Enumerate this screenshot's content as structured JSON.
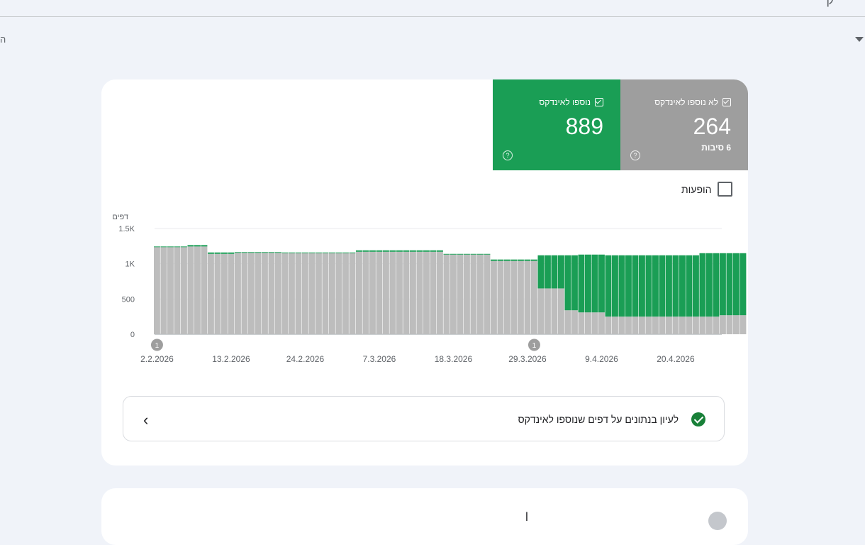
{
  "top": {
    "glyph": "ק",
    "left_fragment": "ה"
  },
  "tiles": {
    "indexed": {
      "label": "נוספו לאינדקס",
      "value": "889",
      "color": "#1a9e55"
    },
    "not_indexed": {
      "label": "לא נוספו לאינדקס",
      "value": "264",
      "sub": "6 סיבות",
      "color": "#9e9e9e"
    },
    "help_glyph": "?"
  },
  "impressions_label": "הופעות",
  "chart_data": {
    "type": "bar",
    "stacked": true,
    "ylabel": "דפים",
    "ylim": [
      0,
      1500
    ],
    "yticks": [
      "0",
      "500",
      "1K",
      "1.5K"
    ],
    "ytick_values": [
      0,
      500,
      1000,
      1500
    ],
    "x_start": "2026-02-02",
    "xtick_labels": [
      "2.2.2026",
      "13.2.2026",
      "24.2.2026",
      "7.3.2026",
      "18.3.2026",
      "29.3.2026",
      "9.4.2026",
      "20.4.2026"
    ],
    "annotations": [
      {
        "date": "2026-02-02",
        "label": "1"
      },
      {
        "date": "2026-03-30",
        "label": "1"
      }
    ],
    "series": [
      {
        "name": "לא נוספו לאינדקס",
        "color": "#bdbdbd",
        "values": [
          1235,
          1235,
          1235,
          1235,
          1235,
          1245,
          1245,
          1245,
          1140,
          1140,
          1140,
          1140,
          1155,
          1155,
          1155,
          1155,
          1155,
          1155,
          1155,
          1150,
          1150,
          1150,
          1150,
          1150,
          1150,
          1150,
          1150,
          1150,
          1150,
          1150,
          1170,
          1170,
          1170,
          1170,
          1170,
          1170,
          1170,
          1170,
          1170,
          1170,
          1170,
          1170,
          1170,
          1130,
          1130,
          1130,
          1130,
          1130,
          1130,
          1130,
          1040,
          1040,
          1040,
          1040,
          1040,
          1040,
          1040,
          650,
          650,
          650,
          650,
          340,
          340,
          310,
          310,
          310,
          310,
          250,
          250,
          250,
          250,
          250,
          250,
          250,
          250,
          250,
          250,
          250,
          250,
          250,
          250,
          250,
          250,
          250,
          270,
          270,
          270,
          270
        ]
      },
      {
        "name": "נוספו לאינדקס",
        "color": "#1a9e55",
        "values": [
          10,
          10,
          10,
          10,
          10,
          20,
          20,
          20,
          20,
          20,
          20,
          20,
          10,
          10,
          10,
          10,
          10,
          10,
          10,
          10,
          10,
          10,
          10,
          10,
          10,
          10,
          10,
          10,
          10,
          10,
          20,
          20,
          20,
          20,
          20,
          20,
          20,
          20,
          20,
          20,
          20,
          20,
          20,
          10,
          10,
          10,
          10,
          10,
          10,
          10,
          20,
          20,
          20,
          20,
          20,
          20,
          20,
          470,
          470,
          470,
          470,
          780,
          780,
          820,
          820,
          820,
          820,
          870,
          870,
          870,
          870,
          870,
          870,
          870,
          870,
          870,
          870,
          870,
          870,
          870,
          870,
          900,
          900,
          900,
          880,
          880,
          880,
          880
        ]
      }
    ]
  },
  "detail_row": {
    "text": "לעיון בנתונים על דפים שנוספו לאינדקס",
    "chevron": "‹"
  },
  "card2": {
    "fragment": "ן"
  }
}
